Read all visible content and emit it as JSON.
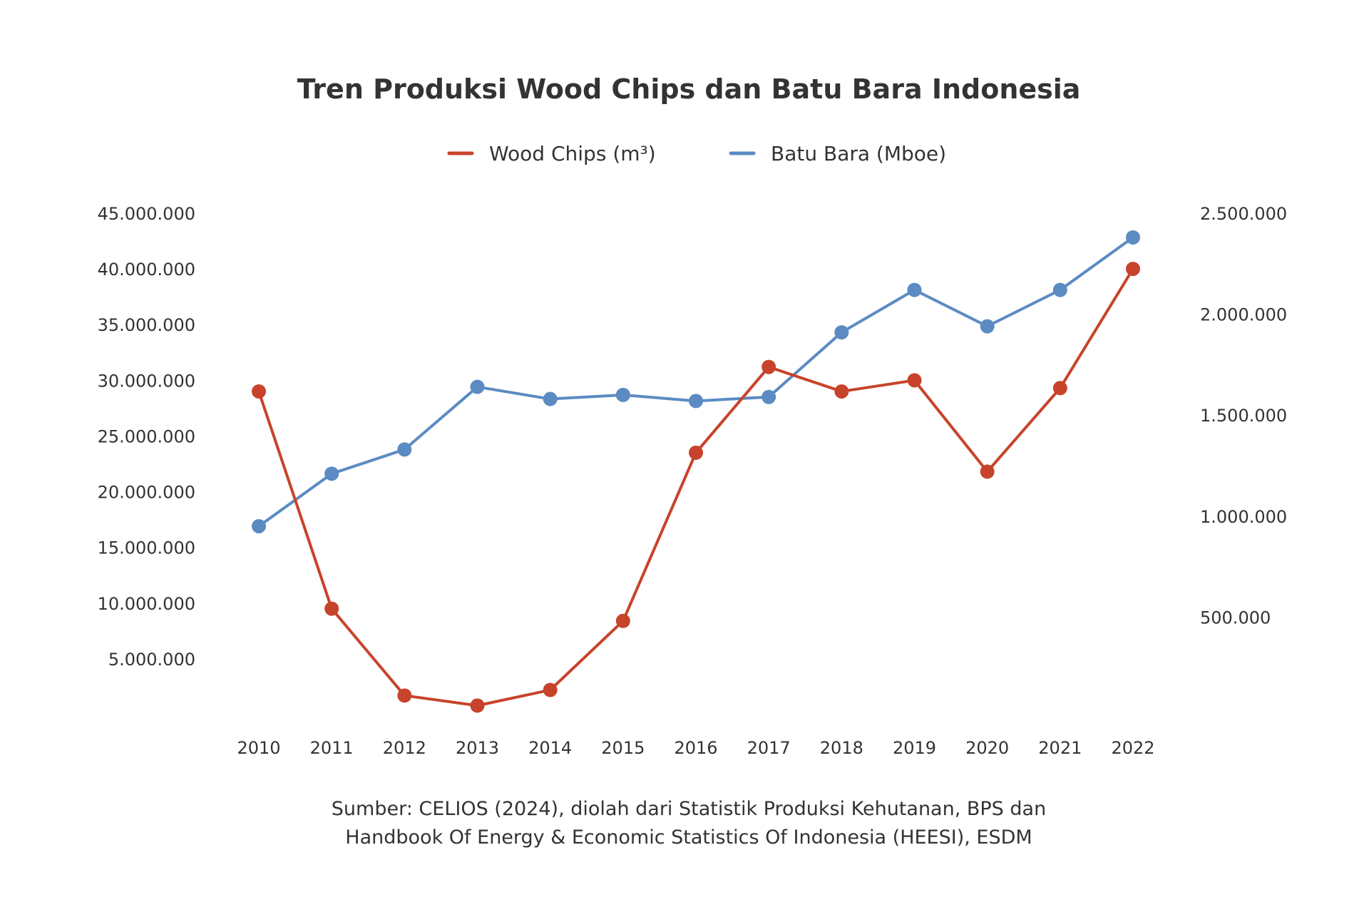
{
  "chart_data": {
    "type": "line",
    "title": "Tren Produksi Wood Chips dan Batu Bara Indonesia",
    "categories": [
      "2010",
      "2011",
      "2012",
      "2013",
      "2014",
      "2015",
      "2016",
      "2017",
      "2018",
      "2019",
      "2020",
      "2021",
      "2022"
    ],
    "series": [
      {
        "name": "Wood Chips (m³)",
        "axis": "left",
        "color": "#c8432b",
        "values": [
          29000000,
          9500000,
          1700000,
          800000,
          2200000,
          8400000,
          23500000,
          31200000,
          29000000,
          30000000,
          21800000,
          29300000,
          40000000
        ]
      },
      {
        "name": "Batu Bara (Mboe)",
        "axis": "right",
        "color": "#5b8bc2",
        "values": [
          950000,
          1210000,
          1330000,
          1640000,
          1580000,
          1600000,
          1570000,
          1590000,
          1910000,
          2120000,
          1940000,
          2120000,
          2380000
        ]
      }
    ],
    "y_left": {
      "ylim": [
        0,
        45000000
      ],
      "ticks": [
        5000000,
        10000000,
        15000000,
        20000000,
        25000000,
        30000000,
        35000000,
        40000000,
        45000000
      ],
      "tick_labels": [
        "5.000.000",
        "10.000.000",
        "15.000.000",
        "20.000.000",
        "25.000.000",
        "30.000.000",
        "35.000.000",
        "40.000.000",
        "45.000.000"
      ]
    },
    "y_right": {
      "ylim": [
        0,
        2500000
      ],
      "ticks": [
        500000,
        1000000,
        1500000,
        2000000,
        2500000
      ],
      "tick_labels": [
        "500.000",
        "1.000.000",
        "1.500.000",
        "2.000.000",
        "2.500.000"
      ]
    },
    "grid": false,
    "legend_position": "top-center"
  },
  "source": {
    "line1": "Sumber: CELIOS (2024), diolah dari Statistik Produksi Kehutanan, BPS dan",
    "line2": "Handbook Of Energy & Economic Statistics Of Indonesia (HEESI), ESDM"
  }
}
